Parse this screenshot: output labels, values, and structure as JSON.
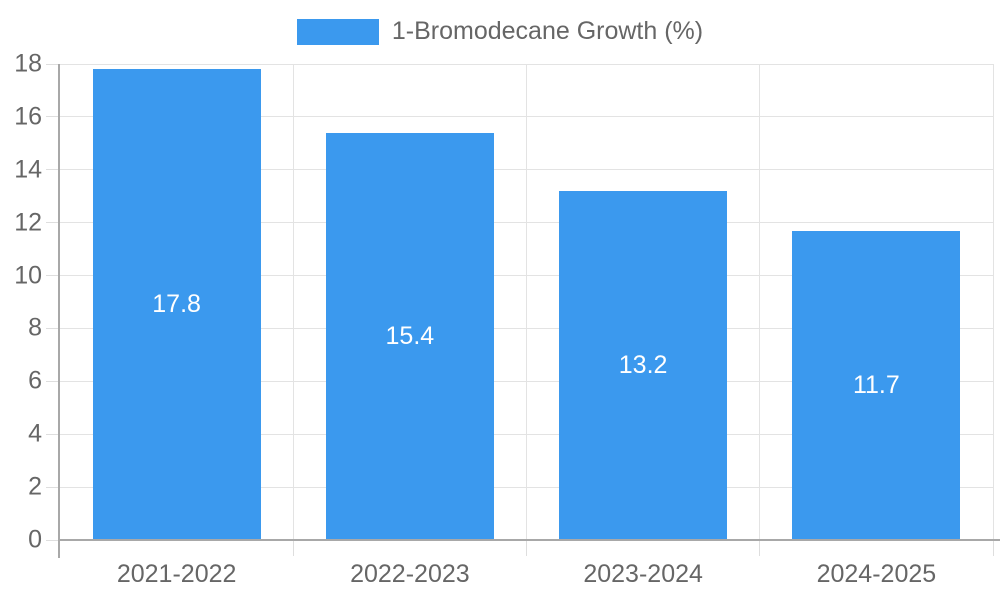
{
  "chart_data": {
    "type": "bar",
    "legend": "1-Bromodecane Growth (%)",
    "legend_position": "top",
    "categories": [
      "2021-2022",
      "2022-2023",
      "2023-2024",
      "2024-2025"
    ],
    "series": [
      {
        "name": "1-Bromodecane Growth (%)",
        "values": [
          17.8,
          15.4,
          13.2,
          11.7
        ]
      }
    ],
    "value_labels": [
      "17.8",
      "15.4",
      "13.2",
      "11.7"
    ],
    "ylim": [
      0,
      18
    ],
    "ytick_step": 2,
    "yticks": [
      0,
      2,
      4,
      6,
      8,
      10,
      12,
      14,
      16,
      18
    ],
    "grid": true,
    "colors": {
      "bar_fill": "#3b99ee",
      "grid": "#e3e3e3",
      "tick": "#dedede",
      "axis": "#a8a8a8",
      "label_text": "#666666",
      "value_text": "#ffffff",
      "background": "#ffffff"
    }
  }
}
